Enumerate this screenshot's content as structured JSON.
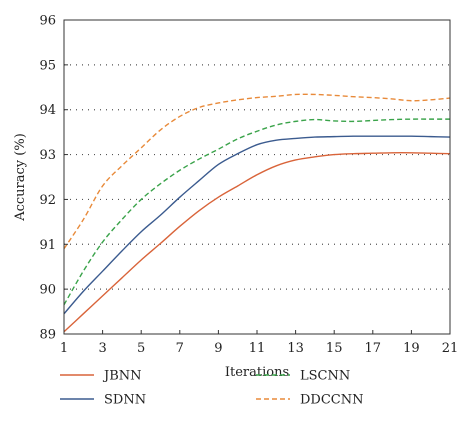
{
  "chart_data": {
    "type": "line",
    "xlabel": "Iterations",
    "ylabel": "Accuracy (%)",
    "xlim": [
      1,
      21
    ],
    "ylim": [
      89,
      96
    ],
    "xticks": [
      1,
      3,
      5,
      7,
      9,
      11,
      13,
      15,
      17,
      19,
      21
    ],
    "yticks": [
      89,
      90,
      91,
      92,
      93,
      94,
      95,
      96
    ],
    "grid": "horizontal-dotted",
    "legend_position": "bottom",
    "x": [
      1,
      2,
      3,
      4,
      5,
      6,
      7,
      8,
      9,
      10,
      11,
      12,
      13,
      14,
      15,
      16,
      17,
      18,
      19,
      20,
      21
    ],
    "series": [
      {
        "name": "JBNN",
        "color": "#d9643a",
        "dash": "solid",
        "values": [
          89.05,
          89.45,
          89.85,
          90.25,
          90.65,
          91.02,
          91.4,
          91.75,
          92.05,
          92.3,
          92.55,
          92.75,
          92.88,
          92.95,
          93.0,
          93.02,
          93.03,
          93.04,
          93.04,
          93.03,
          93.02
        ]
      },
      {
        "name": "SDNN",
        "color": "#3b5b8f",
        "dash": "solid",
        "values": [
          89.45,
          89.95,
          90.4,
          90.85,
          91.28,
          91.65,
          92.05,
          92.42,
          92.78,
          93.02,
          93.22,
          93.32,
          93.36,
          93.39,
          93.4,
          93.41,
          93.41,
          93.41,
          93.41,
          93.4,
          93.39
        ]
      },
      {
        "name": "LSCNN",
        "color": "#3aa34a",
        "dash": "dashed",
        "values": [
          89.65,
          90.4,
          91.05,
          91.55,
          92.0,
          92.35,
          92.65,
          92.9,
          93.12,
          93.35,
          93.52,
          93.66,
          93.74,
          93.78,
          93.75,
          93.74,
          93.76,
          93.78,
          93.79,
          93.79,
          93.79
        ]
      },
      {
        "name": "DDCCNN",
        "color": "#e88a3a",
        "dash": "dashed",
        "values": [
          90.9,
          91.55,
          92.3,
          92.75,
          93.15,
          93.55,
          93.85,
          94.05,
          94.15,
          94.22,
          94.27,
          94.3,
          94.34,
          94.34,
          94.32,
          94.29,
          94.27,
          94.24,
          94.2,
          94.22,
          94.26
        ]
      }
    ]
  }
}
